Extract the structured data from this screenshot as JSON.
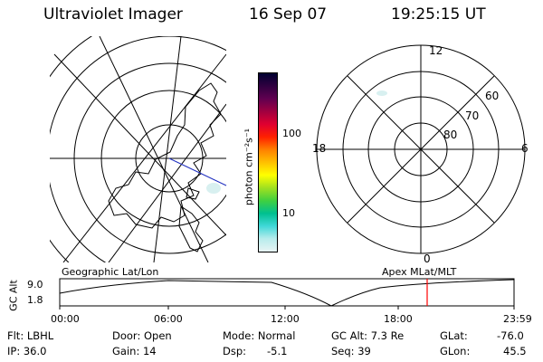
{
  "header": {
    "instrument": "Ultraviolet Imager",
    "date": "16 Sep 07",
    "time": "19:25:15 UT"
  },
  "colorbar": {
    "unit_label": "photon cm⁻²s⁻¹",
    "ticks": [
      "100",
      "10"
    ],
    "colors": [
      "#e8f4f4",
      "#b8ecec",
      "#40d8d8",
      "#00c090",
      "#40d040",
      "#a0e020",
      "#ffff00",
      "#ffc000",
      "#ff8000",
      "#ff2000",
      "#e00030",
      "#a00040",
      "#600050",
      "#300040",
      "#000030"
    ]
  },
  "polar": {
    "labels": {
      "top": "12",
      "bottom": "0",
      "left": "18",
      "right": "6"
    },
    "lat_labels": [
      "60",
      "70",
      "80"
    ]
  },
  "timeline": {
    "left_label": "Geographic Lat/Lon",
    "right_label": "Apex MLat/MLT",
    "axis_title": "GC Alt",
    "y_ticks": [
      "9.0",
      "1.8"
    ],
    "x_ticks": [
      "00:00",
      "06:00",
      "12:00",
      "18:00",
      "23:59"
    ],
    "marker_color": "#ff0000"
  },
  "info": {
    "filter": "Flt: LBHL",
    "ip": "IP: 36.0",
    "door": "Door: Open",
    "gain": "Gain: 14",
    "mode": "Mode: Normal",
    "dsp_label": "Dsp:",
    "dsp_value": "-5.1",
    "gc_alt": "GC Alt: 7.3 Re",
    "seq": "Seq: 39",
    "glat_label": "GLat:",
    "glat_value": "-76.0",
    "glon_label": "GLon:",
    "glon_value": "45.5"
  }
}
